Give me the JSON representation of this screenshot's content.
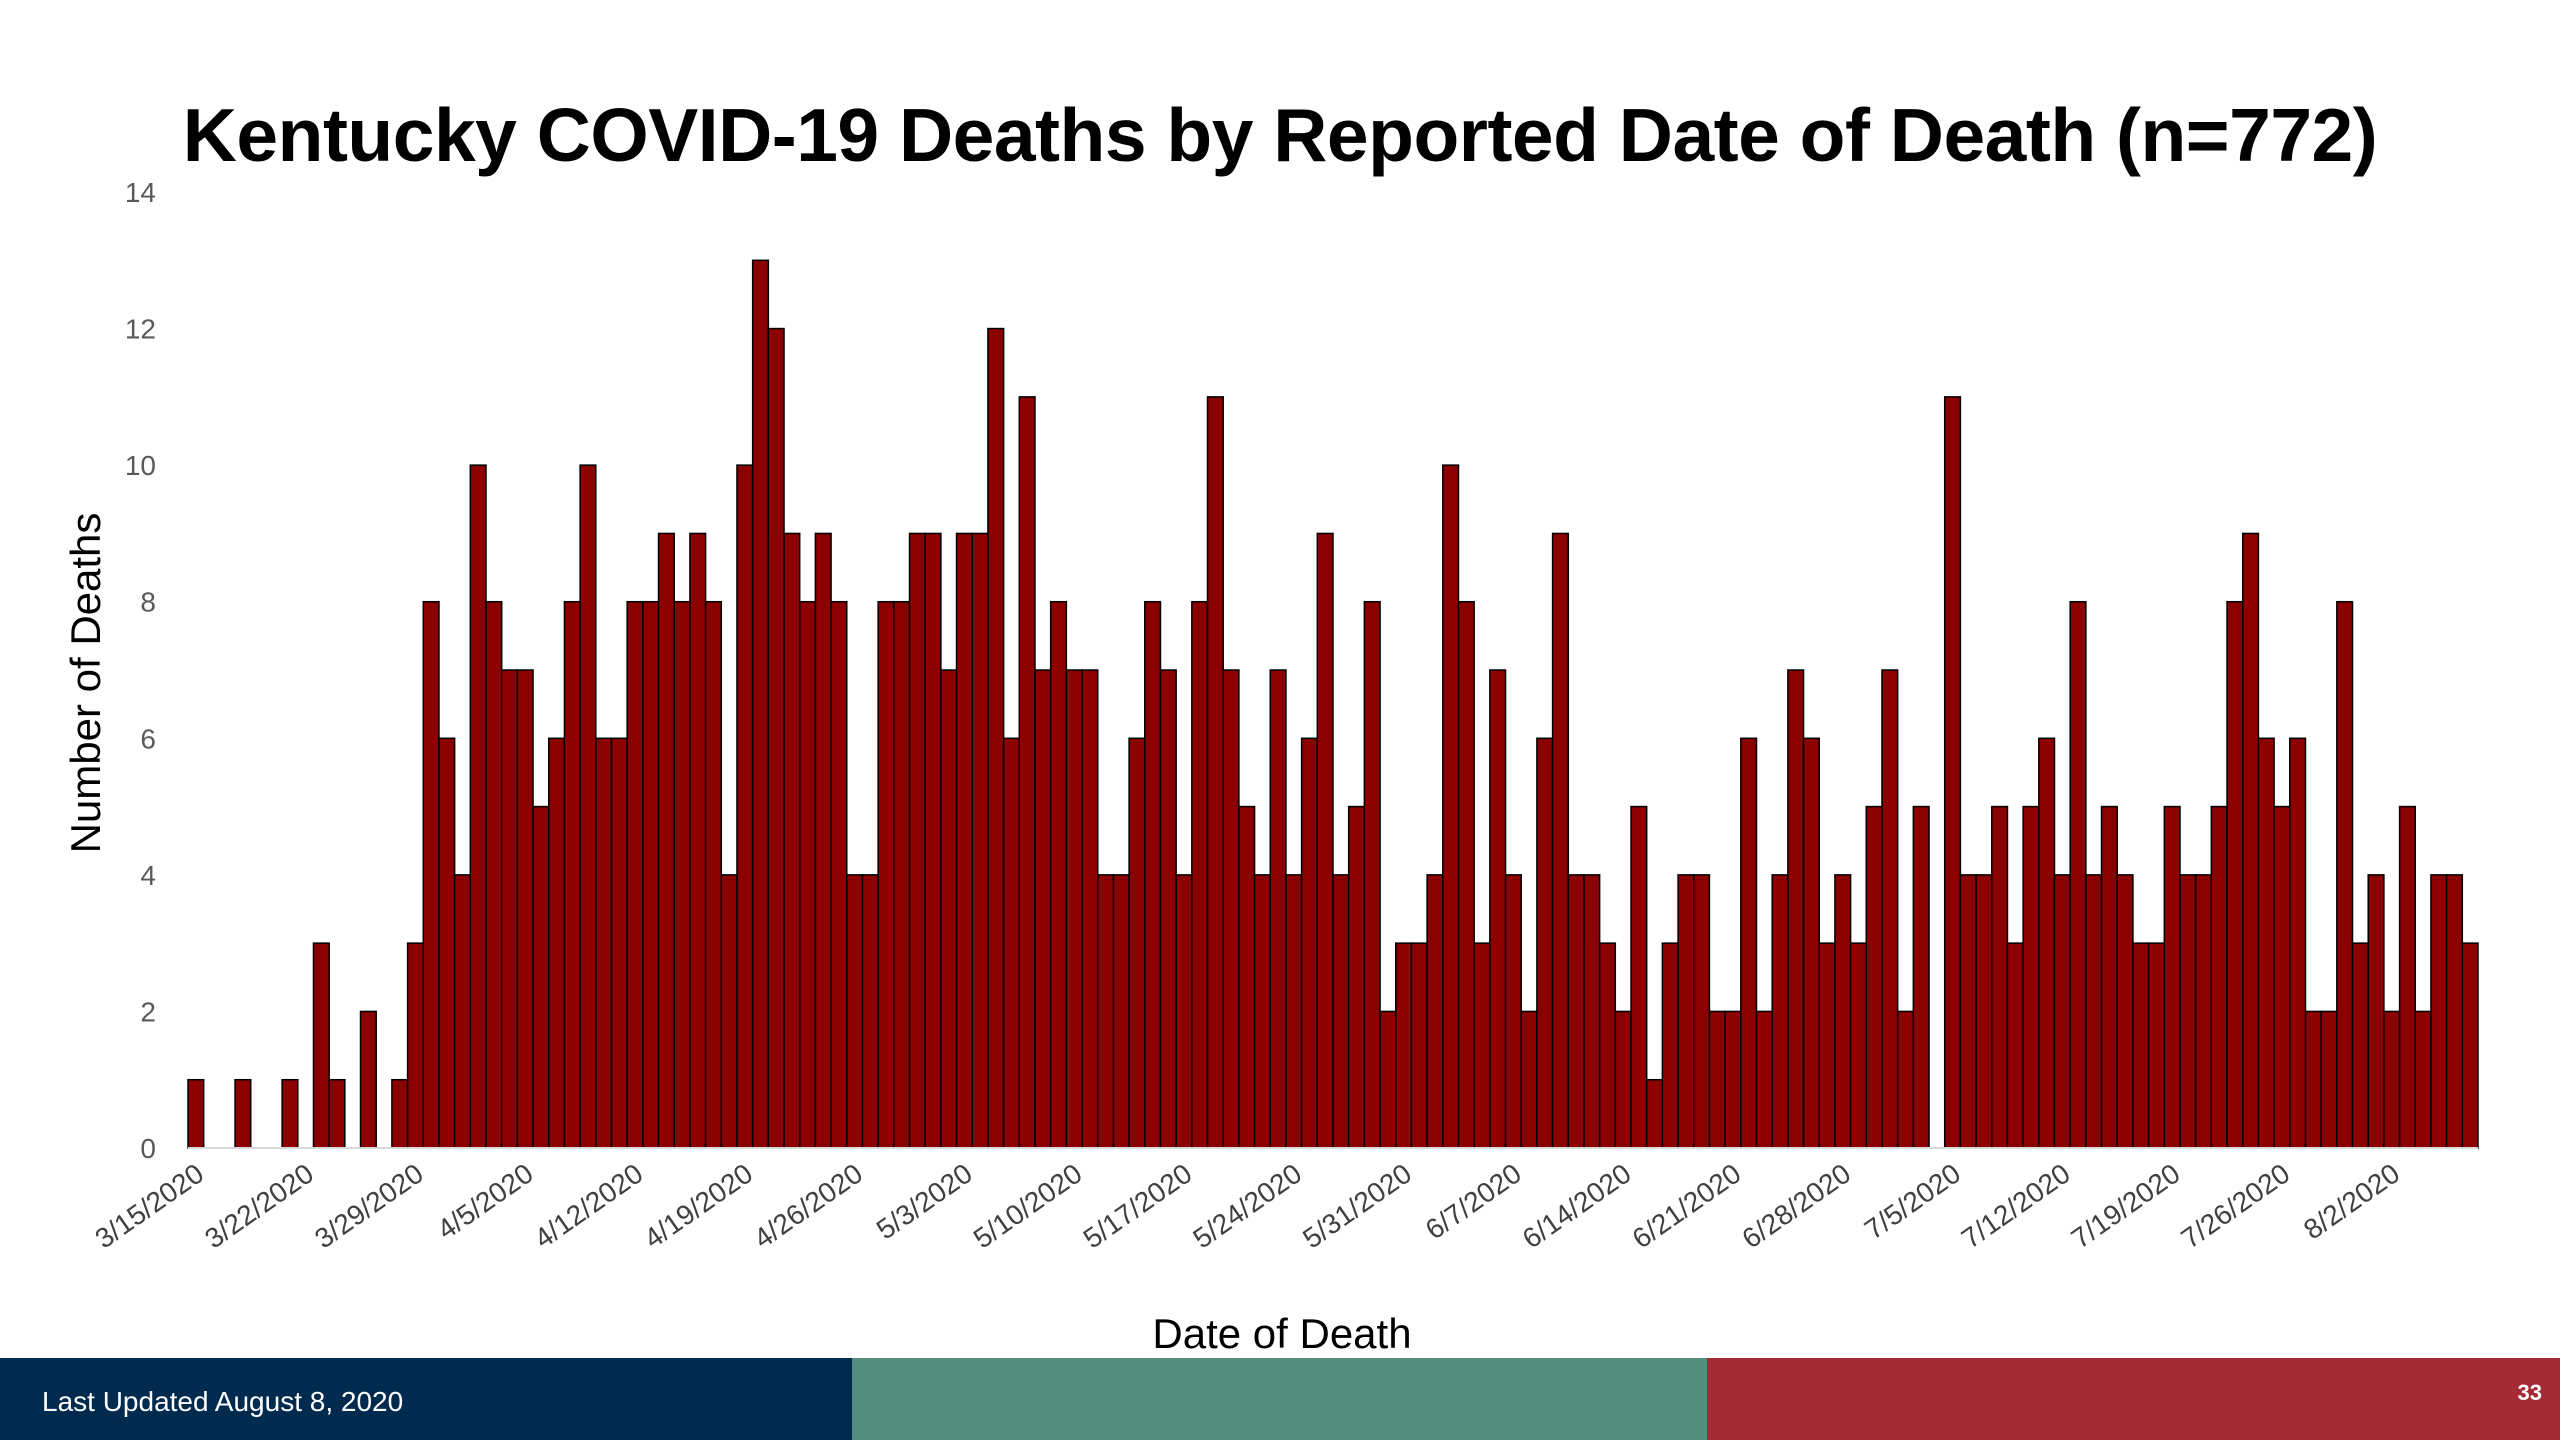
{
  "footer": {
    "updated": "Last Updated August 8, 2020",
    "page_number": "33",
    "colors": [
      "#012a4f",
      "#548c7d",
      "#a42a36"
    ]
  },
  "chart_data": {
    "type": "bar",
    "title": "Kentucky COVID-19 Deaths by Reported Date of Death (n=772)",
    "xlabel": "Date of Death",
    "ylabel": "Number of Deaths",
    "ylim": [
      0,
      14
    ],
    "yticks": [
      0,
      2,
      4,
      6,
      8,
      10,
      12,
      14
    ],
    "bar_color": "#8b0000",
    "grid": false,
    "legend": "none",
    "x_start": "3/15/2020",
    "x_tick_labels": [
      "3/15/2020",
      "3/22/2020",
      "3/29/2020",
      "4/5/2020",
      "4/12/2020",
      "4/19/2020",
      "4/26/2020",
      "5/3/2020",
      "5/10/2020",
      "5/17/2020",
      "5/24/2020",
      "5/31/2020",
      "6/7/2020",
      "6/14/2020",
      "6/21/2020",
      "6/28/2020",
      "7/5/2020",
      "7/12/2020",
      "7/19/2020",
      "7/26/2020",
      "8/2/2020"
    ],
    "values": [
      1,
      0,
      0,
      1,
      0,
      0,
      1,
      0,
      3,
      1,
      0,
      2,
      0,
      1,
      3,
      8,
      6,
      4,
      10,
      8,
      7,
      7,
      5,
      6,
      8,
      10,
      6,
      6,
      8,
      8,
      9,
      8,
      9,
      8,
      4,
      10,
      13,
      12,
      9,
      8,
      9,
      8,
      4,
      4,
      8,
      8,
      9,
      9,
      7,
      9,
      9,
      12,
      6,
      11,
      7,
      8,
      7,
      7,
      4,
      4,
      6,
      8,
      7,
      4,
      8,
      11,
      7,
      5,
      4,
      7,
      4,
      6,
      9,
      4,
      5,
      8,
      2,
      3,
      3,
      4,
      10,
      8,
      3,
      7,
      4,
      2,
      6,
      9,
      4,
      4,
      3,
      2,
      5,
      1,
      3,
      4,
      4,
      2,
      2,
      6,
      2,
      4,
      7,
      6,
      3,
      4,
      3,
      5,
      7,
      2,
      5,
      0,
      11,
      4,
      4,
      5,
      3,
      5,
      6,
      4,
      8,
      4,
      5,
      4,
      3,
      3,
      5,
      4,
      4,
      5,
      8,
      9,
      6,
      5,
      6,
      2,
      2,
      8,
      3,
      4,
      2,
      5,
      2,
      4,
      4,
      3
    ]
  }
}
